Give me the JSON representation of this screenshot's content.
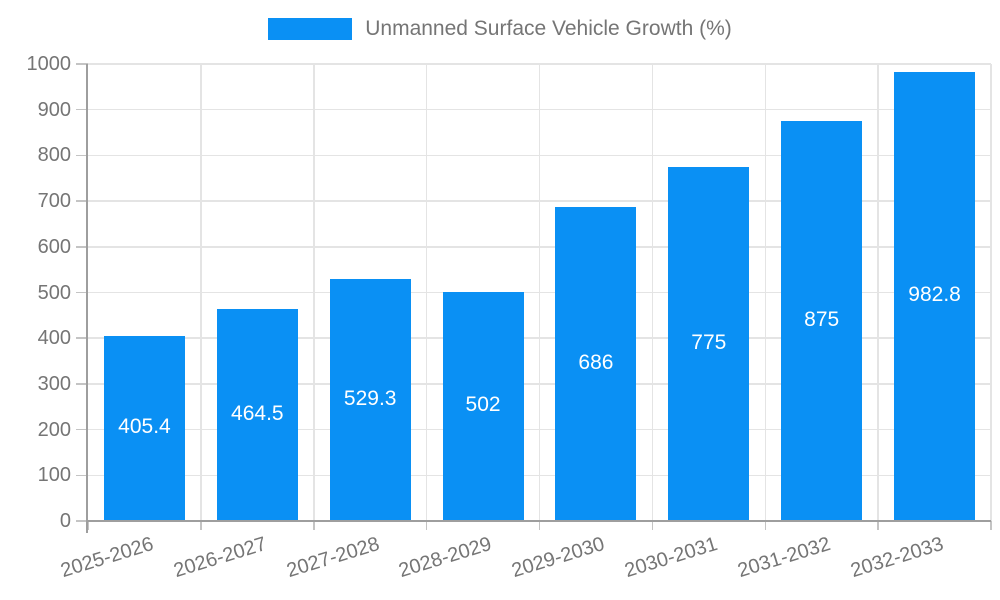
{
  "chart_data": {
    "type": "bar",
    "legend": "Unmanned Surface Vehicle Growth (%)",
    "legend_position": "top",
    "categories": [
      "2025-2026",
      "2026-2027",
      "2027-2028",
      "2028-2029",
      "2029-2030",
      "2030-2031",
      "2031-2032",
      "2032-2033"
    ],
    "values": [
      405.4,
      464.5,
      529.3,
      502,
      686,
      775,
      875,
      982.8
    ],
    "bar_labels": [
      "405.4",
      "464.5",
      "529.3",
      "502",
      "686",
      "775",
      "875",
      "982.8"
    ],
    "ylim": [
      0,
      1000
    ],
    "yticks": [
      0,
      100,
      200,
      300,
      400,
      500,
      600,
      700,
      800,
      900,
      1000
    ],
    "xlabel": "",
    "ylabel": "",
    "grid": true,
    "colors": {
      "bar": "#0A90F4",
      "bar_label_text": "#FFFFFF",
      "axis_line": "#9E9E9E",
      "grid_line": "#E4E4E4",
      "tick_mark": "#C4C4C4",
      "tick_text": "#757575",
      "legend_text": "#757575",
      "background": "#FFFFFF"
    }
  }
}
